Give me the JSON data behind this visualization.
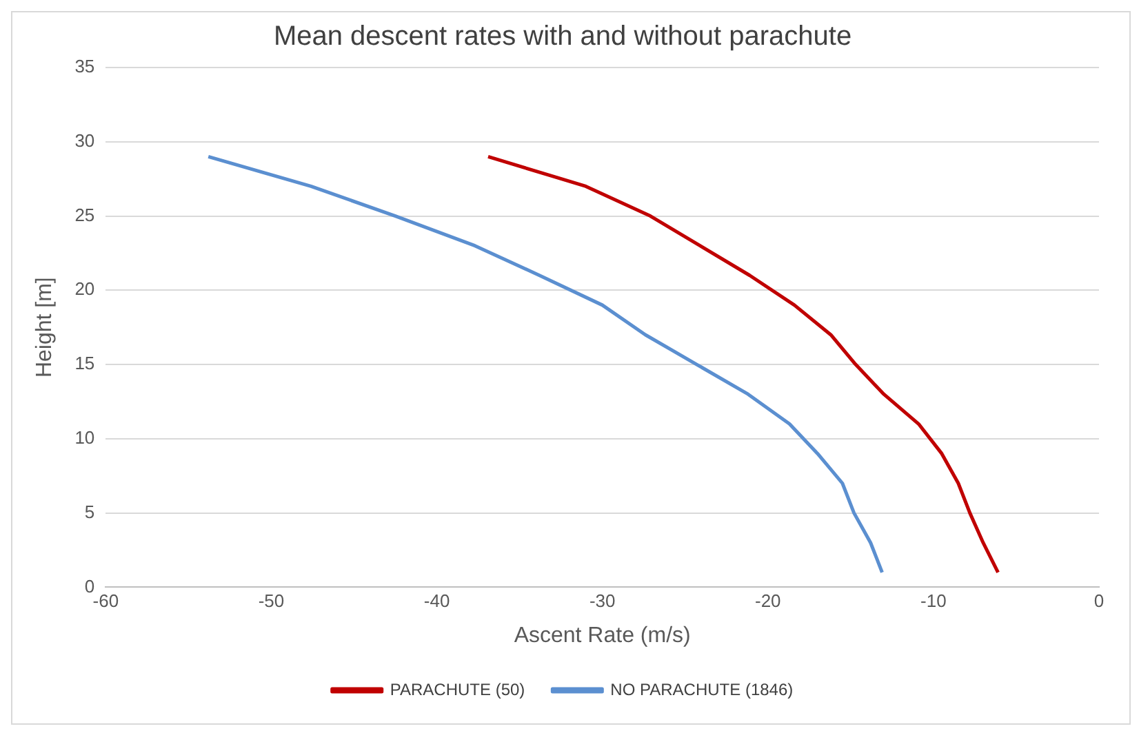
{
  "chart_data": {
    "type": "line",
    "title": "Mean descent rates with and without parachute",
    "xlabel": "Ascent Rate (m/s)",
    "ylabel": "Height [m]",
    "xlim": [
      -60,
      0
    ],
    "xticks": [
      -60,
      -50,
      -40,
      -30,
      -20,
      -10,
      0
    ],
    "ylim": [
      0,
      35
    ],
    "yticks": [
      0,
      5,
      10,
      15,
      20,
      25,
      30,
      35
    ],
    "grid": "y",
    "legend": "bottom",
    "marker": "none",
    "line_style": "solid",
    "series": [
      {
        "name": "PARACHUTE (50)",
        "color": "#c00000",
        "x": [
          -36.9,
          -31.0,
          -27.1,
          -24.1,
          -21.1,
          -18.4,
          -16.2,
          -14.7,
          -13.0,
          -10.9,
          -9.5,
          -8.5,
          -7.8,
          -7.0,
          -6.1
        ],
        "values": [
          29,
          27,
          25,
          23,
          21,
          19,
          17,
          15,
          13,
          11,
          9,
          7,
          5,
          3,
          1
        ]
      },
      {
        "name": "NO PARACHUTE (1846)",
        "color": "#5b8fd0",
        "x": [
          -53.8,
          -47.6,
          -42.5,
          -37.7,
          -33.8,
          -30.0,
          -27.4,
          -24.3,
          -21.2,
          -18.7,
          -17.0,
          -15.5,
          -14.8,
          -13.8,
          -13.1
        ],
        "values": [
          29,
          27,
          25,
          23,
          21,
          19,
          17,
          15,
          13,
          11,
          9,
          7,
          5,
          3,
          1
        ]
      }
    ]
  }
}
